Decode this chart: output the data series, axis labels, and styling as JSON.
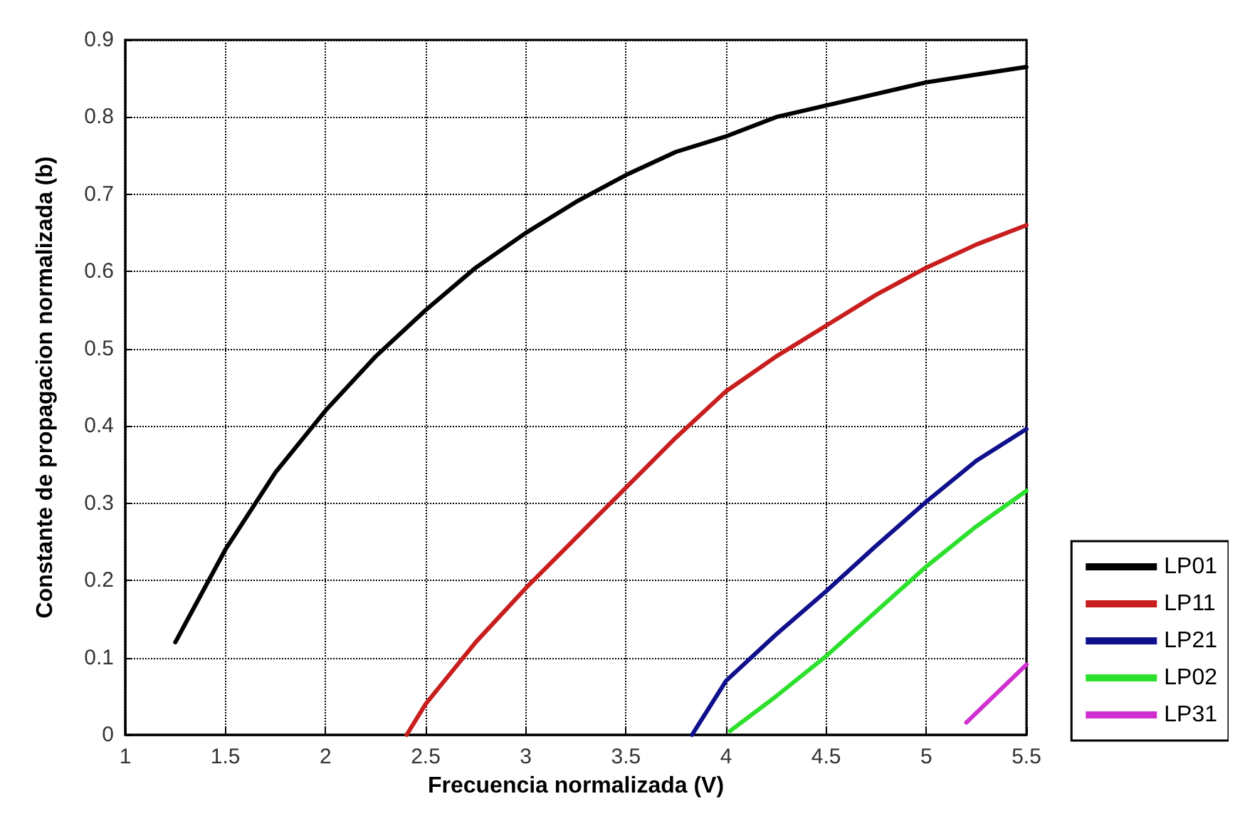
{
  "chart_data": {
    "type": "line",
    "xlabel": "Frecuencia normalizada (V)",
    "ylabel": "Constante de propagacion normalizada (b)",
    "xlim": [
      1,
      5.5
    ],
    "xticks": [
      1,
      1.5,
      2,
      2.5,
      3,
      3.5,
      4,
      4.5,
      5,
      5.5
    ],
    "ylim": [
      0,
      0.9
    ],
    "yticks": [
      0,
      0.1,
      0.2,
      0.3,
      0.4,
      0.5,
      0.6,
      0.7,
      0.8,
      0.9
    ],
    "grid": true,
    "legend": "bottom right",
    "marker": "none",
    "line_style": "solid",
    "series": [
      {
        "name": "LP01",
        "color": "#000000",
        "x": [
          1.25,
          1.375,
          1.5,
          1.75,
          2,
          2.25,
          2.5,
          2.75,
          3,
          3.25,
          3.5,
          3.75,
          4,
          4.25,
          4.5,
          4.75,
          5,
          5.25,
          5.5
        ],
        "values": [
          0.12,
          0.18,
          0.24,
          0.34,
          0.42,
          0.49,
          0.55,
          0.605,
          0.65,
          0.69,
          0.725,
          0.755,
          0.775,
          0.8,
          0.815,
          0.83,
          0.845,
          0.855,
          0.865
        ]
      },
      {
        "name": "LP11",
        "color": "#c81e1e",
        "x": [
          2.405,
          2.5,
          2.75,
          3,
          3.25,
          3.5,
          3.75,
          4,
          4.25,
          4.5,
          4.75,
          5,
          5.25,
          5.5
        ],
        "values": [
          0,
          0.04,
          0.12,
          0.19,
          0.255,
          0.32,
          0.385,
          0.445,
          0.49,
          0.53,
          0.57,
          0.605,
          0.635,
          0.66
        ]
      },
      {
        "name": "LP21",
        "color": "#10108c",
        "x": [
          3.83,
          4,
          4.25,
          4.5,
          4.75,
          5,
          5.25,
          5.5
        ],
        "values": [
          0,
          0.07,
          0.13,
          0.186,
          0.245,
          0.302,
          0.355,
          0.396
        ]
      },
      {
        "name": "LP02",
        "color": "#2ee02e",
        "x": [
          4.02,
          4.25,
          4.5,
          4.75,
          5,
          5.25,
          5.5
        ],
        "values": [
          0.005,
          0.05,
          0.102,
          0.16,
          0.218,
          0.27,
          0.316
        ]
      },
      {
        "name": "LP31",
        "color": "#d030d0",
        "x": [
          5.2,
          5.5
        ],
        "values": [
          0.016,
          0.091
        ]
      }
    ]
  }
}
